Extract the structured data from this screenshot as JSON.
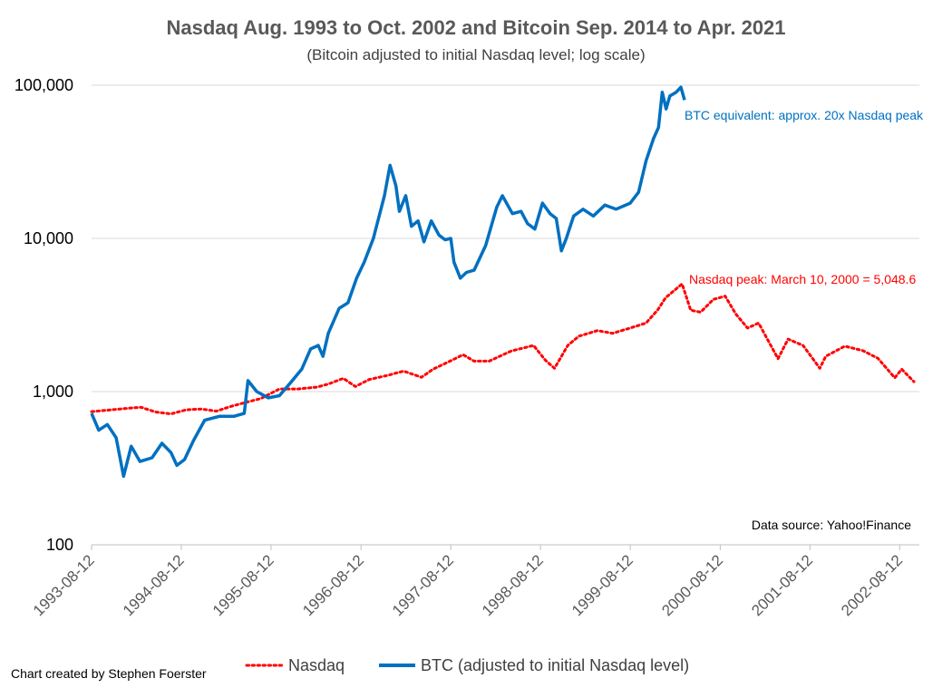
{
  "chart_data": {
    "type": "line",
    "title": "Nasdaq Aug. 1993 to Oct. 2002 and Bitcoin Sep. 2014 to Apr. 2021",
    "subtitle": "(Bitcoin adjusted to initial Nasdaq level; log scale)",
    "y_scale": "log",
    "ylim": [
      100,
      100000
    ],
    "y_ticks": [
      {
        "value": 100,
        "label": "100"
      },
      {
        "value": 1000,
        "label": "1,000"
      },
      {
        "value": 10000,
        "label": "10,000"
      },
      {
        "value": 100000,
        "label": "100,000"
      }
    ],
    "x_ticks": [
      "1993-08-12",
      "1994-08-12",
      "1995-08-12",
      "1996-08-12",
      "1997-08-12",
      "1998-08-12",
      "1999-08-12",
      "2000-08-12",
      "2001-08-12",
      "2002-08-12"
    ],
    "xlim": [
      "1993-08-12",
      "2002-10-31"
    ],
    "grid": "horizontal",
    "legend_position": "bottom",
    "series": [
      {
        "name": "Nasdaq",
        "style": "dotted",
        "color": "#ff0000",
        "points": [
          [
            "1993-08-12",
            740
          ],
          [
            "1993-11-01",
            760
          ],
          [
            "1994-01-15",
            780
          ],
          [
            "1994-03-01",
            790
          ],
          [
            "1994-05-01",
            735
          ],
          [
            "1994-07-01",
            715
          ],
          [
            "1994-09-01",
            760
          ],
          [
            "1994-11-01",
            770
          ],
          [
            "1995-01-01",
            745
          ],
          [
            "1995-03-01",
            800
          ],
          [
            "1995-05-01",
            850
          ],
          [
            "1995-07-01",
            900
          ],
          [
            "1995-09-15",
            1040
          ],
          [
            "1995-12-01",
            1040
          ],
          [
            "1996-02-15",
            1070
          ],
          [
            "1996-04-01",
            1120
          ],
          [
            "1996-06-01",
            1220
          ],
          [
            "1996-07-20",
            1080
          ],
          [
            "1996-09-15",
            1200
          ],
          [
            "1996-12-01",
            1280
          ],
          [
            "1997-02-01",
            1360
          ],
          [
            "1997-04-15",
            1240
          ],
          [
            "1997-06-01",
            1400
          ],
          [
            "1997-08-12",
            1590
          ],
          [
            "1997-10-01",
            1740
          ],
          [
            "1997-11-15",
            1580
          ],
          [
            "1998-01-15",
            1580
          ],
          [
            "1998-04-15",
            1840
          ],
          [
            "1998-07-15",
            2000
          ],
          [
            "1998-09-01",
            1600
          ],
          [
            "1998-10-08",
            1420
          ],
          [
            "1998-12-01",
            2000
          ],
          [
            "1999-01-15",
            2300
          ],
          [
            "1999-04-01",
            2500
          ],
          [
            "1999-06-01",
            2400
          ],
          [
            "1999-08-12",
            2600
          ],
          [
            "1999-10-15",
            2800
          ],
          [
            "1999-12-01",
            3400
          ],
          [
            "2000-01-03",
            4100
          ],
          [
            "2000-03-10",
            5048.6
          ],
          [
            "2000-04-14",
            3400
          ],
          [
            "2000-05-24",
            3300
          ],
          [
            "2000-07-15",
            4000
          ],
          [
            "2000-09-01",
            4200
          ],
          [
            "2000-10-15",
            3200
          ],
          [
            "2000-12-01",
            2600
          ],
          [
            "2001-01-15",
            2800
          ],
          [
            "2001-04-04",
            1640
          ],
          [
            "2001-05-15",
            2200
          ],
          [
            "2001-07-15",
            2000
          ],
          [
            "2001-09-21",
            1420
          ],
          [
            "2001-10-15",
            1700
          ],
          [
            "2002-01-01",
            1980
          ],
          [
            "2002-03-15",
            1850
          ],
          [
            "2002-05-15",
            1650
          ],
          [
            "2002-07-23",
            1230
          ],
          [
            "2002-08-20",
            1400
          ],
          [
            "2002-10-09",
            1160
          ]
        ]
      },
      {
        "name": "BTC (adjusted to initial Nasdaq level)",
        "style": "solid",
        "color": "#0070c0",
        "points": [
          [
            "1993-08-12",
            720
          ],
          [
            "1993-09-10",
            560
          ],
          [
            "1993-10-15",
            610
          ],
          [
            "1993-11-20",
            500
          ],
          [
            "1993-12-20",
            280
          ],
          [
            "1994-01-20",
            440
          ],
          [
            "1994-02-25",
            350
          ],
          [
            "1994-04-15",
            370
          ],
          [
            "1994-05-25",
            460
          ],
          [
            "1994-07-01",
            400
          ],
          [
            "1994-07-25",
            330
          ],
          [
            "1994-08-25",
            360
          ],
          [
            "1994-10-01",
            480
          ],
          [
            "1994-11-15",
            650
          ],
          [
            "1995-01-15",
            690
          ],
          [
            "1995-03-15",
            690
          ],
          [
            "1995-04-25",
            720
          ],
          [
            "1995-05-10",
            1180
          ],
          [
            "1995-06-15",
            1000
          ],
          [
            "1995-08-01",
            910
          ],
          [
            "1995-09-15",
            940
          ],
          [
            "1995-11-01",
            1150
          ],
          [
            "1995-12-15",
            1400
          ],
          [
            "1996-01-20",
            1900
          ],
          [
            "1996-02-20",
            2000
          ],
          [
            "1996-03-10",
            1700
          ],
          [
            "1996-04-01",
            2400
          ],
          [
            "1996-05-15",
            3500
          ],
          [
            "1996-06-20",
            3800
          ],
          [
            "1996-07-25",
            5500
          ],
          [
            "1996-08-25",
            7000
          ],
          [
            "1996-10-01",
            10000
          ],
          [
            "1996-11-15",
            19000
          ],
          [
            "1996-12-08",
            30000
          ],
          [
            "1997-01-01",
            22000
          ],
          [
            "1997-01-15",
            15000
          ],
          [
            "1997-02-10",
            19000
          ],
          [
            "1997-03-05",
            12000
          ],
          [
            "1997-04-01",
            13000
          ],
          [
            "1997-04-25",
            9500
          ],
          [
            "1997-05-25",
            13000
          ],
          [
            "1997-06-25",
            10500
          ],
          [
            "1997-07-20",
            9800
          ],
          [
            "1997-08-12",
            10000
          ],
          [
            "1997-08-25",
            7000
          ],
          [
            "1997-09-20",
            5500
          ],
          [
            "1997-10-15",
            6000
          ],
          [
            "1997-11-15",
            6200
          ],
          [
            "1998-01-01",
            9000
          ],
          [
            "1998-02-15",
            16000
          ],
          [
            "1998-03-10",
            19000
          ],
          [
            "1998-04-20",
            14500
          ],
          [
            "1998-05-25",
            15000
          ],
          [
            "1998-06-20",
            12500
          ],
          [
            "1998-07-20",
            11500
          ],
          [
            "1998-08-20",
            17000
          ],
          [
            "1998-09-20",
            14500
          ],
          [
            "1998-10-15",
            13500
          ],
          [
            "1998-11-05",
            8300
          ],
          [
            "1998-11-25",
            10000
          ],
          [
            "1998-12-25",
            14000
          ],
          [
            "1999-02-01",
            15500
          ],
          [
            "1999-03-15",
            14000
          ],
          [
            "1999-05-01",
            16500
          ],
          [
            "1999-06-15",
            15500
          ],
          [
            "1999-08-12",
            17000
          ],
          [
            "1999-09-15",
            20000
          ],
          [
            "1999-10-15",
            32000
          ],
          [
            "1999-11-15",
            45000
          ],
          [
            "1999-12-05",
            53000
          ],
          [
            "1999-12-20",
            90000
          ],
          [
            "2000-01-05",
            70000
          ],
          [
            "2000-01-20",
            85000
          ],
          [
            "2000-02-15",
            90000
          ],
          [
            "2000-03-05",
            97000
          ],
          [
            "2000-03-20",
            80000
          ]
        ]
      }
    ]
  },
  "annotations": {
    "btc_note": "BTC equivalent: approx. 20x Nasdaq peak",
    "nasdaq_note": "Nasdaq peak: March 10, 2000 = 5,048.6",
    "source": "Data source: Yahoo!Finance"
  },
  "credit": "Chart created by Stephen Foerster",
  "colors": {
    "nasdaq": "#ff0000",
    "btc": "#0070c0",
    "grid": "#d9d9d9",
    "axis": "#bfbfbf"
  }
}
